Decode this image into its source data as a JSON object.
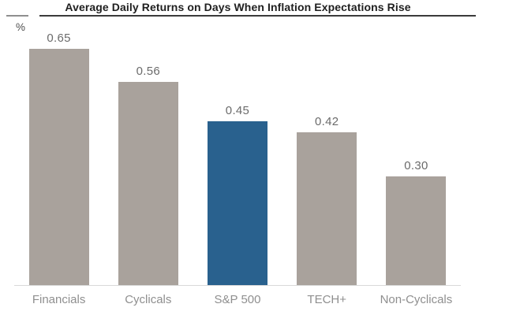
{
  "chart_data": {
    "type": "bar",
    "title": "Average Daily Returns on Days When Inflation Expectations Rise",
    "ylabel": "%",
    "xlabel": "",
    "categories": [
      "Financials",
      "Cyclicals",
      "S&P 500",
      "TECH+",
      "Non-Cyclicals"
    ],
    "values": [
      0.65,
      0.56,
      0.45,
      0.42,
      0.3
    ],
    "value_labels": [
      "0.65",
      "0.56",
      "0.45",
      "0.42",
      "0.30"
    ],
    "highlight_index": 2,
    "bar_color": "#a9a29c",
    "highlight_color": "#29618e",
    "axis_color": "#d9d9d9",
    "value_label_color": "#6b6b6b",
    "category_label_color": "#8f8f8f",
    "grid": false,
    "legend": false
  }
}
